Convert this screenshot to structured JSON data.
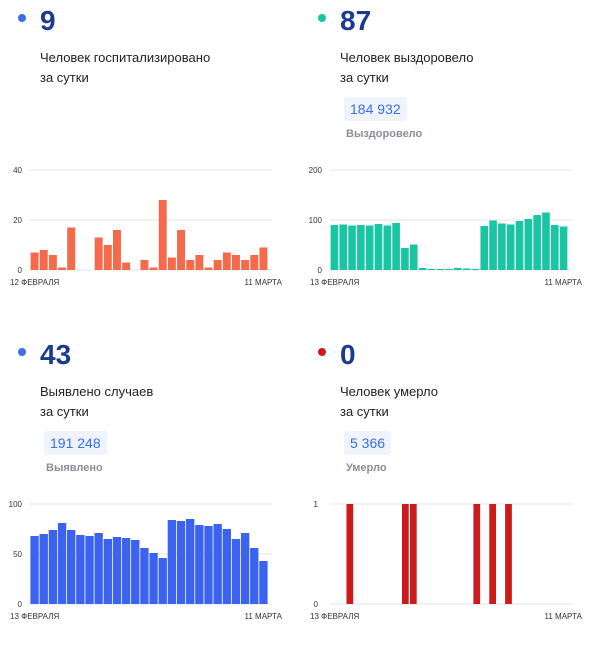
{
  "cards": {
    "hospitalized": {
      "value": "9",
      "desc_line1": "Человек госпитализировано",
      "desc_line2": "за сутки",
      "color": "#f46a4a",
      "dot_color": "#3a6fe8"
    },
    "recovered": {
      "value": "87",
      "desc_line1": "Человек выздоровело",
      "desc_line2": "за сутки",
      "total": "184 932",
      "total_label": "Выздоровело",
      "color": "#19c6a4",
      "dot_color": "#19c6a4"
    },
    "cases": {
      "value": "43",
      "desc_line1": "Выявлено случаев",
      "desc_line2": "за сутки",
      "total": "191 248",
      "total_label": "Выявлено",
      "color": "#3b63f0",
      "dot_color": "#3a6fe8"
    },
    "deaths": {
      "value": "0",
      "desc_line1": "Человек умерло",
      "desc_line2": "за сутки",
      "total": "5 366",
      "total_label": "Умерло",
      "color": "#cc1b1b",
      "dot_color": "#cc1b1b"
    }
  },
  "chart_data": [
    {
      "type": "bar",
      "title": "",
      "x_start_label": "12 ФЕВРАЛЯ",
      "x_end_label": "11 МАРТА",
      "ylim": [
        0,
        40
      ],
      "yticks": [
        0,
        20,
        40
      ],
      "values": [
        7,
        8,
        6,
        1,
        17,
        0,
        0,
        13,
        10,
        16,
        3,
        0,
        4,
        1,
        28,
        5,
        16,
        4,
        6,
        1,
        4,
        7,
        6,
        4,
        6,
        9
      ],
      "color": "#f46a4a"
    },
    {
      "type": "bar",
      "title": "",
      "x_start_label": "13 ФЕВРАЛЯ",
      "x_end_label": "11 МАРТА",
      "ylim": [
        0,
        200
      ],
      "yticks": [
        0,
        100,
        200
      ],
      "values": [
        90,
        91,
        89,
        90,
        89,
        92,
        89,
        94,
        44,
        51,
        4,
        2,
        2,
        2,
        4,
        3,
        2,
        88,
        99,
        93,
        91,
        98,
        102,
        110,
        115,
        90,
        87
      ],
      "color": "#19c6a4"
    },
    {
      "type": "bar",
      "title": "",
      "x_start_label": "13 ФЕВРАЛЯ",
      "x_end_label": "11 МАРТА",
      "ylim": [
        0,
        100
      ],
      "yticks": [
        0,
        50,
        100
      ],
      "values": [
        68,
        70,
        74,
        81,
        74,
        69,
        68,
        71,
        65,
        67,
        66,
        64,
        56,
        51,
        46,
        84,
        83,
        85,
        79,
        78,
        80,
        75,
        65,
        71,
        56,
        43
      ],
      "color": "#3b63f0"
    },
    {
      "type": "bar",
      "title": "",
      "x_start_label": "13 ФЕВРАЛЯ",
      "x_end_label": "11 МАРТА",
      "ylim": [
        0,
        1
      ],
      "yticks": [
        0,
        1
      ],
      "values": [
        0,
        0,
        1,
        0,
        0,
        0,
        0,
        0,
        0,
        1,
        1,
        0,
        0,
        0,
        0,
        0,
        0,
        0,
        1,
        0,
        1,
        0,
        1,
        0,
        0,
        0,
        0,
        0,
        0,
        0
      ],
      "color": "#cc1b1b"
    }
  ]
}
